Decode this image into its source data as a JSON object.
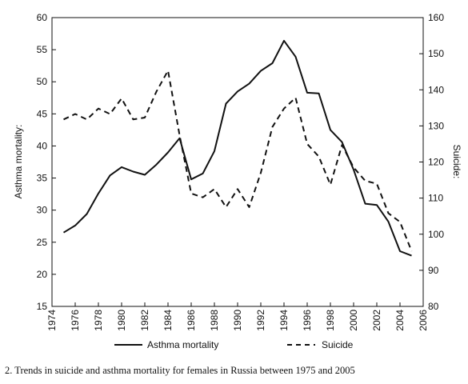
{
  "chart_data": {
    "type": "line",
    "x": [
      1975,
      1976,
      1977,
      1978,
      1979,
      1980,
      1981,
      1982,
      1983,
      1984,
      1985,
      1986,
      1987,
      1988,
      1989,
      1990,
      1991,
      1992,
      1993,
      1994,
      1995,
      1996,
      1997,
      1998,
      1999,
      2000,
      2001,
      2002,
      2003,
      2004,
      2005
    ],
    "series": [
      {
        "name": "Asthma mortality",
        "axis": "left",
        "style": "solid",
        "color": "#111111",
        "values": [
          26.5,
          27.6,
          29.4,
          32.6,
          35.4,
          36.7,
          36.0,
          35.5,
          37.1,
          39.0,
          41.2,
          34.8,
          35.7,
          39.2,
          46.6,
          48.5,
          49.7,
          51.7,
          52.9,
          56.4,
          53.9,
          48.3,
          48.2,
          42.5,
          40.6,
          36.3,
          31.0,
          30.8,
          28.2,
          23.6,
          22.9
        ]
      },
      {
        "name": "Suicide",
        "axis": "right",
        "style": "dashed",
        "color": "#111111",
        "values": [
          131.8,
          133.3,
          131.8,
          134.8,
          133.3,
          137.6,
          131.8,
          132.3,
          139.5,
          145.3,
          127.4,
          111.3,
          110.2,
          112.5,
          107.5,
          112.5,
          107.5,
          117.0,
          129.7,
          134.8,
          137.8,
          125.0,
          121.5,
          113.7,
          124.7,
          118.5,
          114.8,
          114.0,
          105.8,
          103.4,
          95.3
        ]
      }
    ],
    "xlim": [
      1974,
      2006
    ],
    "x_ticks": [
      1974,
      1976,
      1978,
      1980,
      1982,
      1984,
      1986,
      1988,
      1990,
      1992,
      1994,
      1996,
      1998,
      2000,
      2002,
      2004,
      2006
    ],
    "ylim_left": [
      15,
      60
    ],
    "y_ticks_left": [
      15,
      20,
      25,
      30,
      35,
      40,
      45,
      50,
      55,
      60
    ],
    "ylim_right": [
      80,
      160
    ],
    "y_ticks_right": [
      80,
      90,
      100,
      110,
      120,
      130,
      140,
      150,
      160
    ],
    "ylabel_left": "Asthma mortality:",
    "ylabel_right": "Suicide:",
    "xlabel": "",
    "grid": false,
    "legend_position": "bottom"
  },
  "caption": "2. Trends in suicide and asthma mortality for females in Russia between 1975 and 2005"
}
